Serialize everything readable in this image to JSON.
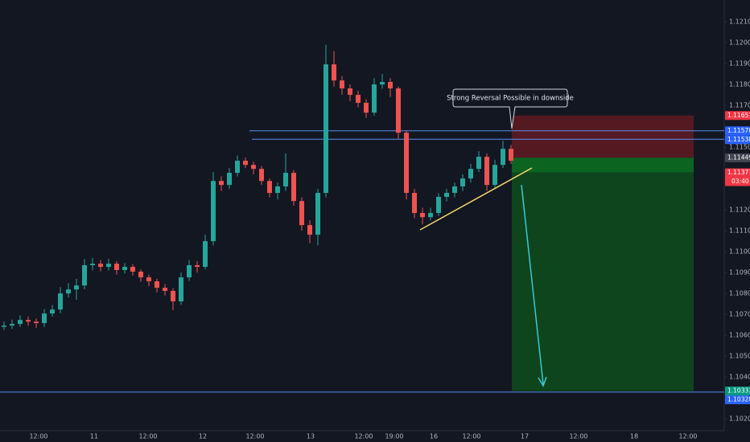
{
  "chart_data": {
    "type": "candlestick",
    "ylim": [
      1.10089,
      1.12204
    ],
    "yticks": [
      {
        "value": 1.121,
        "label": "1.12100"
      },
      {
        "value": 1.12,
        "label": "1.12000"
      },
      {
        "value": 1.119,
        "label": "1.11900"
      },
      {
        "value": 1.118,
        "label": "1.11800"
      },
      {
        "value": 1.117,
        "label": "1.11700"
      },
      {
        "value": 1.115,
        "label": "1.11500"
      },
      {
        "value": 1.112,
        "label": "1.11200"
      },
      {
        "value": 1.111,
        "label": "1.11100"
      },
      {
        "value": 1.11,
        "label": "1.11000"
      },
      {
        "value": 1.109,
        "label": "1.10900"
      },
      {
        "value": 1.108,
        "label": "1.10800"
      },
      {
        "value": 1.107,
        "label": "1.10700"
      },
      {
        "value": 1.106,
        "label": "1.10600"
      },
      {
        "value": 1.105,
        "label": "1.10500"
      },
      {
        "value": 1.104,
        "label": "1.10400"
      },
      {
        "value": 1.102,
        "label": "1.10200"
      }
    ],
    "x_labels": [
      "12:00",
      "11",
      "12:00",
      "12",
      "12:00",
      "13",
      "12:00",
      "19:00",
      "16",
      "12:00",
      "17",
      "12:00",
      "18",
      "12:00"
    ],
    "up_color": "#26a69a",
    "down_color": "#ef5350",
    "ohlc": [
      [
        1.1064,
        1.10665,
        1.10625,
        1.10646
      ],
      [
        1.10646,
        1.10675,
        1.1063,
        1.10654
      ],
      [
        1.10654,
        1.10695,
        1.1064,
        1.10673
      ],
      [
        1.10673,
        1.1069,
        1.10645,
        1.10665
      ],
      [
        1.10665,
        1.1068,
        1.10635,
        1.10658
      ],
      [
        1.10658,
        1.10725,
        1.1064,
        1.10704
      ],
      [
        1.10704,
        1.10745,
        1.1069,
        1.10723
      ],
      [
        1.10723,
        1.1083,
        1.10705,
        1.108
      ],
      [
        1.108,
        1.1085,
        1.1078,
        1.10819
      ],
      [
        1.10819,
        1.1087,
        1.1077,
        1.10838
      ],
      [
        1.10838,
        1.10965,
        1.1082,
        1.10935
      ],
      [
        1.10935,
        1.1097,
        1.1091,
        1.10942
      ],
      [
        1.10942,
        1.1096,
        1.10905,
        1.10927
      ],
      [
        1.10927,
        1.10965,
        1.1091,
        1.10942
      ],
      [
        1.10942,
        1.10955,
        1.1089,
        1.10912
      ],
      [
        1.10912,
        1.10945,
        1.10895,
        1.10927
      ],
      [
        1.10927,
        1.1094,
        1.10885,
        1.10904
      ],
      [
        1.10904,
        1.10915,
        1.10855,
        1.10877
      ],
      [
        1.10877,
        1.1089,
        1.10835,
        1.10858
      ],
      [
        1.10858,
        1.1087,
        1.10805,
        1.10827
      ],
      [
        1.10827,
        1.10845,
        1.1079,
        1.10812
      ],
      [
        1.10812,
        1.10825,
        1.1072,
        1.10762
      ],
      [
        1.10762,
        1.109,
        1.10745,
        1.10877
      ],
      [
        1.10877,
        1.1096,
        1.1086,
        1.10935
      ],
      [
        1.10935,
        1.10955,
        1.109,
        1.10927
      ],
      [
        1.10927,
        1.1108,
        1.10915,
        1.1105
      ],
      [
        1.1105,
        1.1138,
        1.1103,
        1.11338
      ],
      [
        1.11338,
        1.1136,
        1.1129,
        1.11319
      ],
      [
        1.11319,
        1.114,
        1.113,
        1.11377
      ],
      [
        1.11377,
        1.1146,
        1.1136,
        1.11435
      ],
      [
        1.11435,
        1.1145,
        1.114,
        1.11415
      ],
      [
        1.11415,
        1.1143,
        1.1137,
        1.11396
      ],
      [
        1.11396,
        1.1141,
        1.1132,
        1.11338
      ],
      [
        1.11338,
        1.1135,
        1.1126,
        1.11281
      ],
      [
        1.11281,
        1.1133,
        1.1125,
        1.11312
      ],
      [
        1.11312,
        1.1147,
        1.1129,
        1.11377
      ],
      [
        1.11377,
        1.1139,
        1.1122,
        1.11242
      ],
      [
        1.11242,
        1.1126,
        1.111,
        1.11127
      ],
      [
        1.11127,
        1.1115,
        1.1104,
        1.11081
      ],
      [
        1.11081,
        1.113,
        1.1103,
        1.11281
      ],
      [
        1.11281,
        1.1199,
        1.1126,
        1.11896
      ],
      [
        1.11896,
        1.1196,
        1.1179,
        1.11819
      ],
      [
        1.11819,
        1.1184,
        1.1175,
        1.11781
      ],
      [
        1.11781,
        1.118,
        1.1172,
        1.1175
      ],
      [
        1.1175,
        1.1177,
        1.1169,
        1.11712
      ],
      [
        1.11712,
        1.1173,
        1.1164,
        1.11665
      ],
      [
        1.11665,
        1.1183,
        1.1165,
        1.118
      ],
      [
        1.118,
        1.1185,
        1.1178,
        1.11812
      ],
      [
        1.11812,
        1.1183,
        1.1174,
        1.11781
      ],
      [
        1.11781,
        1.1179,
        1.1154,
        1.11569
      ],
      [
        1.11569,
        1.1158,
        1.1125,
        1.11281
      ],
      [
        1.11281,
        1.113,
        1.1116,
        1.11185
      ],
      [
        1.11185,
        1.1121,
        1.1113,
        1.11165
      ],
      [
        1.11165,
        1.1121,
        1.1115,
        1.11185
      ],
      [
        1.11185,
        1.1128,
        1.1117,
        1.11262
      ],
      [
        1.11262,
        1.113,
        1.1124,
        1.11281
      ],
      [
        1.11281,
        1.1133,
        1.1126,
        1.11312
      ],
      [
        1.11312,
        1.1137,
        1.1129,
        1.1135
      ],
      [
        1.1135,
        1.1142,
        1.1133,
        1.11396
      ],
      [
        1.11396,
        1.1148,
        1.1138,
        1.11454
      ],
      [
        1.11454,
        1.1147,
        1.1129,
        1.11319
      ],
      [
        1.11319,
        1.1144,
        1.113,
        1.11415
      ],
      [
        1.11415,
        1.1153,
        1.114,
        1.11492
      ],
      [
        1.11492,
        1.1151,
        1.1142,
        1.11435
      ]
    ],
    "levels": [
      {
        "value": 1.11578,
        "color": "#5b8def"
      },
      {
        "value": 1.11538,
        "color": "#5b8def"
      },
      {
        "value": 1.10328,
        "color": "#5b8def"
      }
    ],
    "position": {
      "stop": 1.11651,
      "entry": 1.11449,
      "target": 1.10333,
      "stop_color": "#5d1a22",
      "target_color": "#0e4a1c"
    },
    "price_labels": [
      {
        "value": 1.11651,
        "color": "#f23645"
      },
      {
        "value": 1.11578,
        "color": "#2962ff"
      },
      {
        "value": 1.11538,
        "color": "#2962ff"
      },
      {
        "value": 1.11449,
        "color": "#434651"
      },
      {
        "value": 1.11377,
        "color": "#f23645"
      },
      {
        "value": 1.10333,
        "color": "#089981"
      },
      {
        "value": 1.10328,
        "color": "#2962ff"
      }
    ],
    "countdown": "03:40",
    "annotation": "Strong Reversal Possible in downside"
  }
}
